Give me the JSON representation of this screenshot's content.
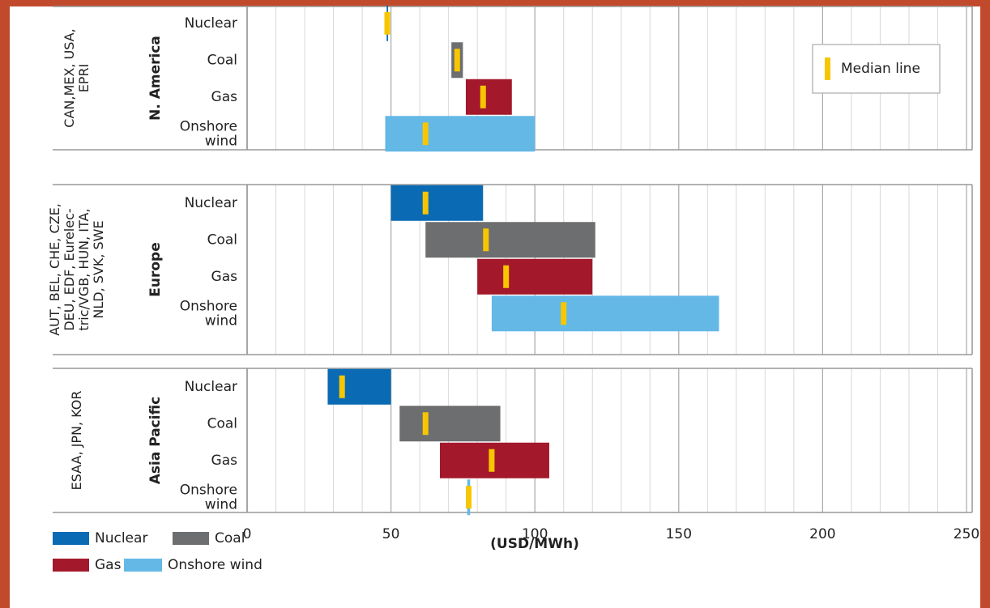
{
  "chart_data": {
    "type": "range_bar",
    "xlabel": "(USD/MWh)",
    "xlim": [
      0,
      250
    ],
    "xticks": [
      0,
      50,
      100,
      150,
      200,
      250
    ],
    "minor_step": 10,
    "grid": true,
    "median_label": "Median line",
    "median_color": "#f7c600",
    "legend": [
      {
        "name": "Nuclear",
        "color": "#0a6ab4"
      },
      {
        "name": "Coal",
        "color": "#6d6e70"
      },
      {
        "name": "Gas",
        "color": "#a3192b"
      },
      {
        "name": "Onshore wind",
        "color": "#63b8e6"
      }
    ],
    "panels": [
      {
        "region": "N. America",
        "source": [
          "CAN,MEX, USA,",
          "EPRI"
        ],
        "rows": [
          {
            "label": [
              "Nuclear"
            ],
            "low": 48.5,
            "high": 49,
            "median": 48.7
          },
          {
            "label": [
              "Coal"
            ],
            "low": 71,
            "high": 75,
            "median": 73
          },
          {
            "label": [
              "Gas"
            ],
            "low": 76,
            "high": 92,
            "median": 82
          },
          {
            "label": [
              "Onshore",
              "wind"
            ],
            "low": 48,
            "high": 100,
            "median": 62
          }
        ]
      },
      {
        "region": "Europe",
        "source": [
          "AUT, BEL, CHE, CZE,",
          "DEU, EDF, Eurelec-",
          "tric/VGB, HUN, ITA,",
          "NLD, SVK, SWE"
        ],
        "rows": [
          {
            "label": [
              "Nuclear"
            ],
            "low": 50,
            "high": 82,
            "median": 62
          },
          {
            "label": [
              "Coal"
            ],
            "low": 62,
            "high": 121,
            "median": 83
          },
          {
            "label": [
              "Gas"
            ],
            "low": 80,
            "high": 120,
            "median": 90
          },
          {
            "label": [
              "Onshore",
              "wind"
            ],
            "low": 85,
            "high": 164,
            "median": 110
          }
        ]
      },
      {
        "region": "Asia Pacific",
        "source": [
          "ESAA, JPN, KOR"
        ],
        "rows": [
          {
            "label": [
              "Nuclear"
            ],
            "low": 28,
            "high": 50,
            "median": 33
          },
          {
            "label": [
              "Coal"
            ],
            "low": 53,
            "high": 88,
            "median": 62
          },
          {
            "label": [
              "Gas"
            ],
            "low": 67,
            "high": 105,
            "median": 85
          },
          {
            "label": [
              "Onshore",
              "wind"
            ],
            "low": 76.5,
            "high": 77.5,
            "median": 77
          }
        ]
      }
    ]
  }
}
